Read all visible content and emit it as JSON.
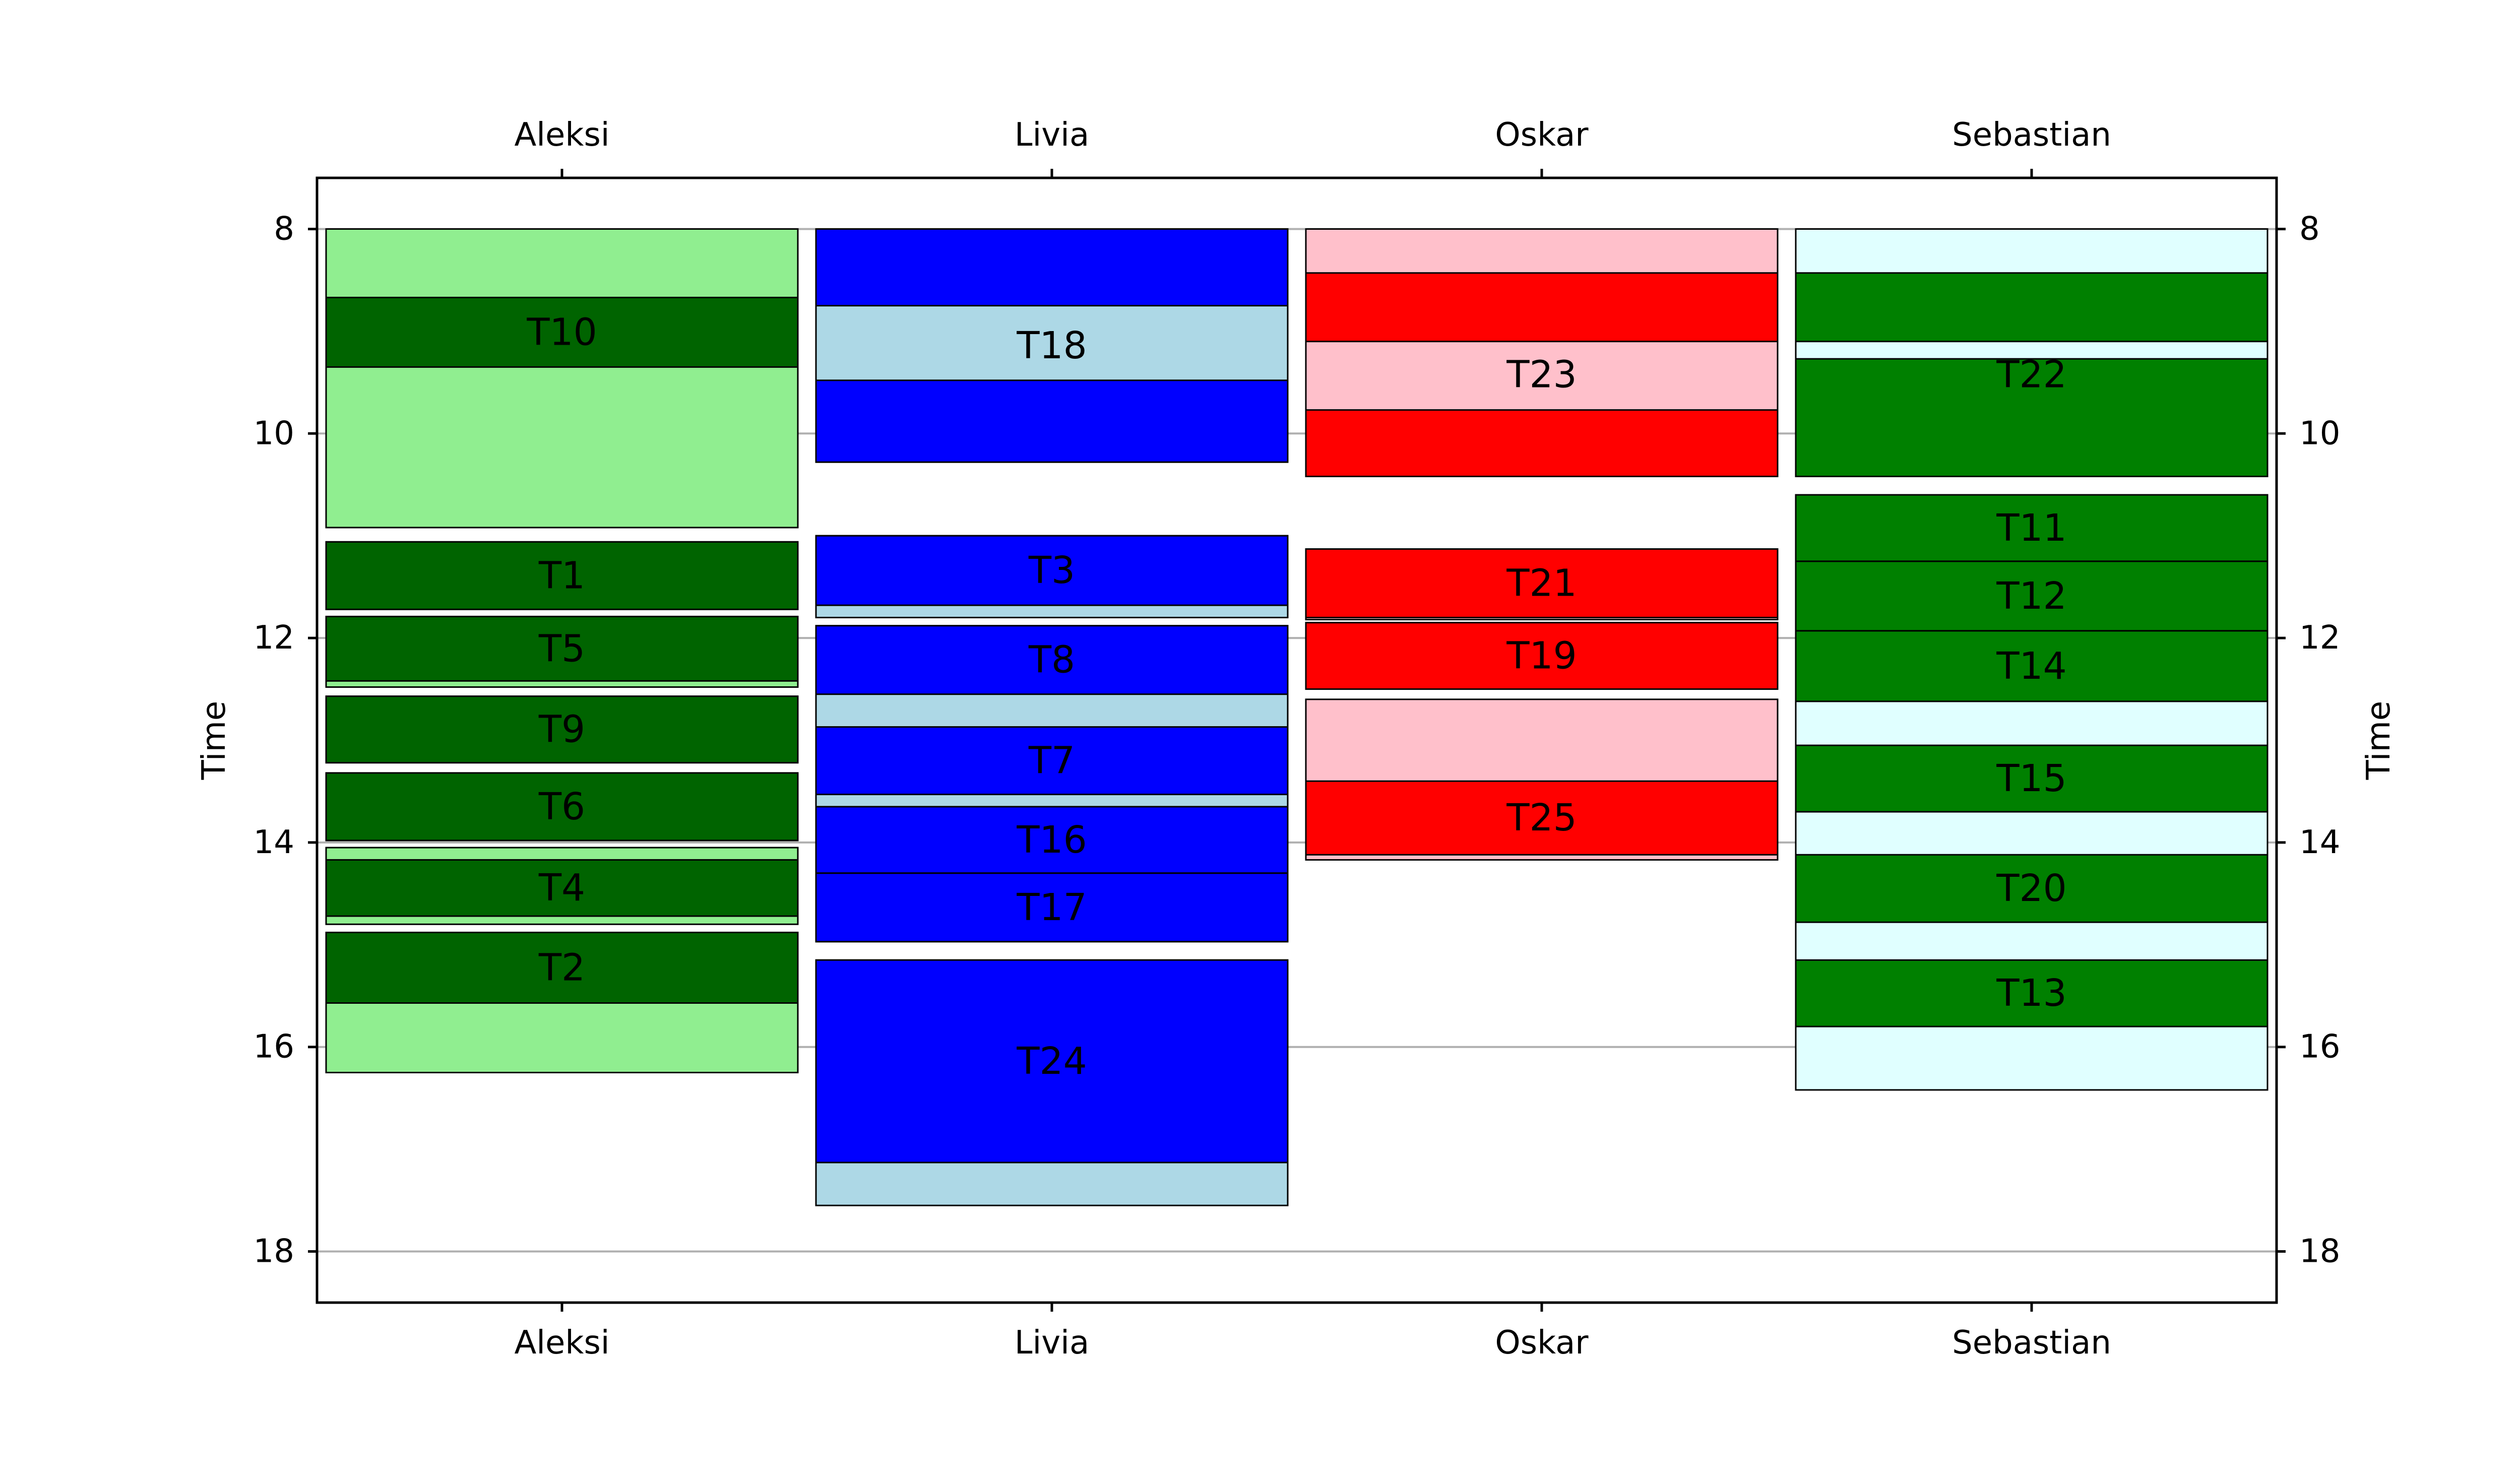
{
  "chart_data": {
    "type": "gantt",
    "ylabel": "Time",
    "ylim": [
      18.5,
      7.5
    ],
    "yticks": [
      8,
      10,
      12,
      14,
      16,
      18
    ],
    "grid": "horizontal",
    "columns": [
      {
        "name": "Aleksi",
        "background_color": "#90EE90",
        "task_color": "#006400",
        "backgrounds": [
          [
            8.0,
            10.92
          ],
          [
            11.06,
            11.72
          ],
          [
            11.79,
            12.48
          ],
          [
            12.57,
            13.22
          ],
          [
            13.32,
            13.98
          ],
          [
            14.05,
            14.8
          ],
          [
            14.88,
            16.25
          ]
        ],
        "tasks": [
          {
            "label": "T10",
            "start": 8.67,
            "end": 9.35
          },
          {
            "label": "T1",
            "start": 11.06,
            "end": 11.72
          },
          {
            "label": "T5",
            "start": 11.79,
            "end": 12.42
          },
          {
            "label": "T9",
            "start": 12.57,
            "end": 13.22
          },
          {
            "label": "T6",
            "start": 13.32,
            "end": 13.98
          },
          {
            "label": "T4",
            "start": 14.17,
            "end": 14.72
          },
          {
            "label": "T2",
            "start": 14.88,
            "end": 15.57
          }
        ]
      },
      {
        "name": "Livia",
        "background_color": "#ADD8E6",
        "task_color": "#0000FF",
        "backgrounds": [
          [
            8.0,
            10.28
          ],
          [
            11.0,
            11.8
          ],
          [
            11.88,
            14.97
          ],
          [
            15.15,
            17.55
          ]
        ],
        "tasks": [
          {
            "label": "T18",
            "start": 8.0,
            "end": 10.28,
            "gaps": [
              [
                8.75,
                9.48
              ]
            ]
          },
          {
            "label": "T3",
            "start": 11.0,
            "end": 11.68
          },
          {
            "label": "T8",
            "start": 11.88,
            "end": 12.55
          },
          {
            "label": "T7",
            "start": 12.87,
            "end": 13.53
          },
          {
            "label": "T16",
            "start": 13.65,
            "end": 14.3
          },
          {
            "label": "T17",
            "start": 14.3,
            "end": 14.97
          },
          {
            "label": "T24",
            "start": 15.15,
            "end": 17.13
          }
        ]
      },
      {
        "name": "Oskar",
        "background_color": "#FFC0CB",
        "task_color": "#FF0000",
        "backgrounds": [
          [
            8.0,
            10.42
          ],
          [
            11.13,
            11.82
          ],
          [
            11.85,
            12.5
          ],
          [
            12.6,
            14.17
          ]
        ],
        "tasks": [
          {
            "label": "T23",
            "start": 8.43,
            "end": 10.42,
            "gaps": [
              [
                9.1,
                9.77
              ]
            ]
          },
          {
            "label": "T21",
            "start": 11.13,
            "end": 11.8
          },
          {
            "label": "T19",
            "start": 11.85,
            "end": 12.5
          },
          {
            "label": "T25",
            "start": 13.4,
            "end": 14.12
          }
        ]
      },
      {
        "name": "Sebastian",
        "background_color": "#E0FFFF",
        "task_color": "#008000",
        "backgrounds": [
          [
            8.0,
            10.42
          ],
          [
            10.6,
            16.42
          ]
        ],
        "tasks": [
          {
            "label": "T22",
            "start": 8.43,
            "end": 10.42,
            "gaps": [
              [
                9.1,
                9.27
              ]
            ]
          },
          {
            "label": "T11",
            "start": 10.6,
            "end": 11.25
          },
          {
            "label": "T12",
            "start": 11.25,
            "end": 11.93
          },
          {
            "label": "T14",
            "start": 11.93,
            "end": 12.62
          },
          {
            "label": "T15",
            "start": 13.05,
            "end": 13.7
          },
          {
            "label": "T20",
            "start": 14.12,
            "end": 14.78
          },
          {
            "label": "T13",
            "start": 15.15,
            "end": 15.8
          }
        ]
      }
    ]
  }
}
